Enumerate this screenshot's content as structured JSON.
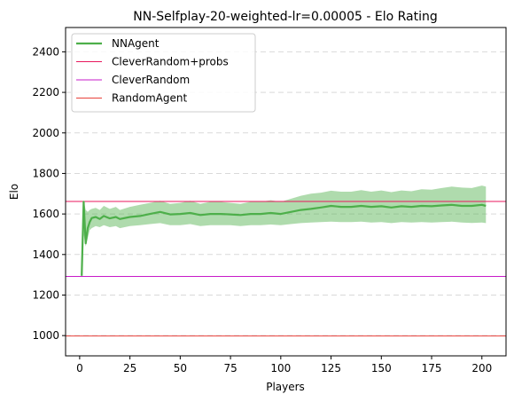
{
  "chart_data": {
    "type": "line",
    "title": "NN-Selfplay-20-weighted-lr=0.00005 - Elo Rating",
    "xlabel": "Players",
    "ylabel": "Elo",
    "xlim": [
      -7,
      212
    ],
    "ylim": [
      900,
      2520
    ],
    "xticks": [
      0,
      25,
      50,
      75,
      100,
      125,
      150,
      175,
      200
    ],
    "yticks": [
      1000,
      1200,
      1400,
      1600,
      1800,
      2000,
      2200,
      2400
    ],
    "grid": "horizontal dashed",
    "legend_position": "top-left",
    "series": [
      {
        "name": "NNAgent",
        "color": "#4daf4a",
        "x": [
          1,
          2,
          3,
          4,
          5,
          6,
          8,
          10,
          12,
          15,
          18,
          20,
          25,
          30,
          35,
          40,
          45,
          50,
          55,
          60,
          65,
          70,
          75,
          80,
          85,
          90,
          95,
          100,
          105,
          110,
          115,
          120,
          125,
          130,
          135,
          140,
          145,
          150,
          155,
          160,
          165,
          170,
          175,
          180,
          185,
          190,
          195,
          200,
          202
        ],
        "y": [
          1295,
          1660,
          1455,
          1530,
          1560,
          1580,
          1585,
          1575,
          1590,
          1578,
          1585,
          1575,
          1585,
          1590,
          1600,
          1610,
          1598,
          1600,
          1605,
          1595,
          1600,
          1600,
          1598,
          1595,
          1600,
          1600,
          1605,
          1600,
          1610,
          1620,
          1625,
          1632,
          1640,
          1635,
          1635,
          1640,
          1635,
          1638,
          1632,
          1638,
          1635,
          1640,
          1638,
          1642,
          1645,
          1640,
          1640,
          1645,
          1640
        ],
        "lower": [
          1295,
          1500,
          1440,
          1480,
          1520,
          1530,
          1540,
          1535,
          1545,
          1535,
          1540,
          1530,
          1540,
          1545,
          1550,
          1555,
          1545,
          1545,
          1550,
          1540,
          1545,
          1545,
          1545,
          1540,
          1545,
          1545,
          1548,
          1545,
          1550,
          1555,
          1558,
          1560,
          1562,
          1560,
          1560,
          1562,
          1558,
          1560,
          1555,
          1560,
          1558,
          1560,
          1558,
          1560,
          1562,
          1558,
          1556,
          1558,
          1555
        ],
        "upper": [
          1295,
          1665,
          1620,
          1610,
          1620,
          1625,
          1630,
          1620,
          1640,
          1625,
          1635,
          1620,
          1635,
          1645,
          1655,
          1665,
          1650,
          1655,
          1665,
          1650,
          1660,
          1660,
          1655,
          1650,
          1660,
          1660,
          1668,
          1660,
          1675,
          1690,
          1700,
          1705,
          1715,
          1710,
          1710,
          1718,
          1710,
          1716,
          1708,
          1716,
          1712,
          1722,
          1720,
          1728,
          1735,
          1730,
          1728,
          1740,
          1735
        ]
      },
      {
        "name": "CleverRandom+probs",
        "color": "#e8175d",
        "hline": 1662
      },
      {
        "name": "CleverRandom",
        "color": "#c71bc9",
        "hline": 1292
      },
      {
        "name": "RandomAgent",
        "color": "#e8413a",
        "hline": 998
      }
    ]
  }
}
